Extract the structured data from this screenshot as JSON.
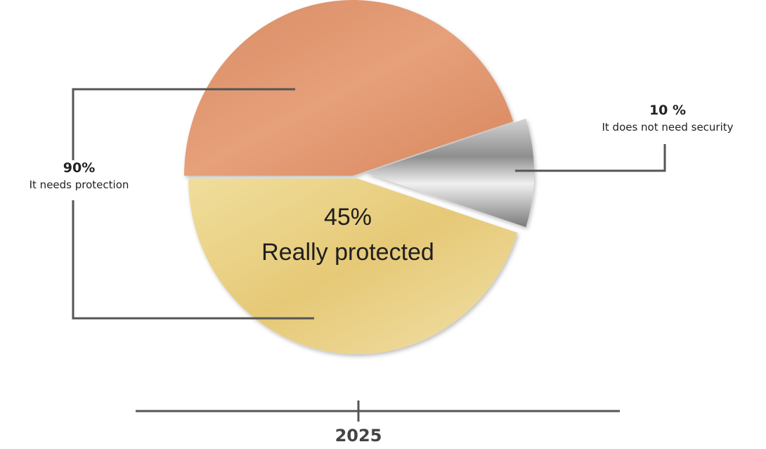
{
  "chart_data": {
    "type": "pie",
    "slices": [
      {
        "label": "It needs protection",
        "value_label": "90%",
        "value": 90,
        "color": "#e09a72"
      },
      {
        "label": "It does not need security",
        "value_label": "10 %",
        "value": 10,
        "color": "#a8a8a8"
      }
    ],
    "sub_slice": {
      "label": "Really protected",
      "value_label": "45%",
      "value": 45,
      "color": "#e8cf7e",
      "part_of": "It needs protection"
    },
    "xlabel": "2025",
    "colors": {
      "copper": "#e09a72",
      "gold": "#e8cf7e",
      "silver": "#a8a8a8",
      "leader": "#555555"
    }
  }
}
